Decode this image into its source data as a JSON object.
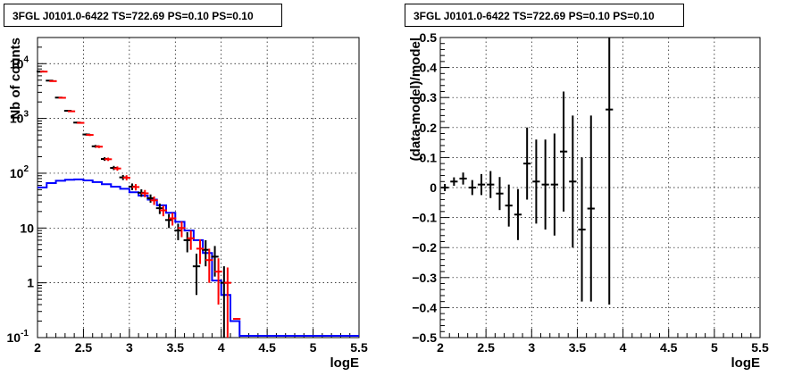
{
  "chart_data": [
    {
      "type": "line",
      "title": "3FGL J0101.0-6422 TS=722.69 PS=0.10 PS=0.10",
      "xlabel": "logE",
      "ylabel": "Nb of counts",
      "xlim": [
        2,
        5.5
      ],
      "ylim": [
        0.1,
        30000
      ],
      "yscale": "log",
      "grid": true,
      "x_ticks": [
        "2",
        "2.5",
        "3",
        "3.5",
        "4",
        "4.5",
        "5",
        "5.5"
      ],
      "y_ticks": [
        "10^-1",
        "1",
        "10",
        "10^2",
        "10^3",
        "10^4"
      ],
      "bin_width": 0.1,
      "series": [
        {
          "role": "data",
          "color": "#000000",
          "points": [
            {
              "x": 2.05,
              "y": 7200,
              "err": 85
            },
            {
              "x": 2.15,
              "y": 4900,
              "err": 70
            },
            {
              "x": 2.25,
              "y": 2400,
              "err": 49
            },
            {
              "x": 2.35,
              "y": 1380,
              "err": 37
            },
            {
              "x": 2.45,
              "y": 840,
              "err": 29
            },
            {
              "x": 2.55,
              "y": 510,
              "err": 23
            },
            {
              "x": 2.65,
              "y": 310,
              "err": 18
            },
            {
              "x": 2.75,
              "y": 182,
              "err": 14
            },
            {
              "x": 2.85,
              "y": 125,
              "err": 11
            },
            {
              "x": 2.95,
              "y": 84,
              "err": 9
            },
            {
              "x": 3.05,
              "y": 57,
              "err": 8
            },
            {
              "x": 3.15,
              "y": 44,
              "err": 7
            },
            {
              "x": 3.25,
              "y": 35,
              "err": 6
            },
            {
              "x": 3.35,
              "y": 23,
              "err": 5
            },
            {
              "x": 3.45,
              "y": 14,
              "err": 4
            },
            {
              "x": 3.55,
              "y": 9,
              "err": 3
            },
            {
              "x": 3.65,
              "y": 6,
              "err": 2.4
            },
            {
              "x": 3.75,
              "y": 2,
              "err": 1.4
            },
            {
              "x": 3.85,
              "y": 4,
              "err": 2
            },
            {
              "x": 3.95,
              "y": 3,
              "err": 1.7
            },
            {
              "x": 4.05,
              "y": 1,
              "err": 1
            }
          ]
        },
        {
          "role": "model total",
          "color": "#ff0000",
          "points": [
            {
              "x": 2.05,
              "y": 7150,
              "err": 84
            },
            {
              "x": 2.15,
              "y": 4800,
              "err": 69
            },
            {
              "x": 2.25,
              "y": 2380,
              "err": 48
            },
            {
              "x": 2.35,
              "y": 1350,
              "err": 36
            },
            {
              "x": 2.45,
              "y": 830,
              "err": 28
            },
            {
              "x": 2.55,
              "y": 500,
              "err": 22
            },
            {
              "x": 2.65,
              "y": 305,
              "err": 17
            },
            {
              "x": 2.75,
              "y": 180,
              "err": 13
            },
            {
              "x": 2.85,
              "y": 122,
              "err": 11
            },
            {
              "x": 2.95,
              "y": 83,
              "err": 9
            },
            {
              "x": 3.05,
              "y": 56,
              "err": 7.5
            },
            {
              "x": 3.15,
              "y": 43,
              "err": 6.5
            },
            {
              "x": 3.25,
              "y": 32,
              "err": 5.6
            },
            {
              "x": 3.35,
              "y": 21,
              "err": 4.6
            },
            {
              "x": 3.45,
              "y": 15,
              "err": 3.9
            },
            {
              "x": 3.55,
              "y": 10,
              "err": 3.2
            },
            {
              "x": 3.65,
              "y": 6.5,
              "err": 2.5
            },
            {
              "x": 3.75,
              "y": 4.2,
              "err": 2
            },
            {
              "x": 3.85,
              "y": 2.6,
              "err": 1.6
            },
            {
              "x": 3.95,
              "y": 1.6,
              "err": 1.2
            },
            {
              "x": 4.05,
              "y": 1,
              "err": 0.9
            },
            {
              "x": 4.15,
              "y": 0.22,
              "err": 0
            }
          ]
        },
        {
          "role": "source model",
          "color": "#0000ff",
          "bins": [
            {
              "x0": 2.0,
              "y": 55
            },
            {
              "x0": 2.1,
              "y": 66
            },
            {
              "x0": 2.2,
              "y": 73
            },
            {
              "x0": 2.3,
              "y": 76
            },
            {
              "x0": 2.4,
              "y": 77
            },
            {
              "x0": 2.5,
              "y": 74
            },
            {
              "x0": 2.6,
              "y": 69
            },
            {
              "x0": 2.7,
              "y": 63
            },
            {
              "x0": 2.8,
              "y": 57
            },
            {
              "x0": 2.9,
              "y": 52
            },
            {
              "x0": 3.0,
              "y": 45
            },
            {
              "x0": 3.1,
              "y": 39
            },
            {
              "x0": 3.2,
              "y": 33
            },
            {
              "x0": 3.3,
              "y": 26
            },
            {
              "x0": 3.4,
              "y": 19
            },
            {
              "x0": 3.5,
              "y": 13
            },
            {
              "x0": 3.6,
              "y": 9
            },
            {
              "x0": 3.7,
              "y": 6
            },
            {
              "x0": 3.8,
              "y": 3.5
            },
            {
              "x0": 3.9,
              "y": 1.1
            },
            {
              "x0": 4.0,
              "y": 0.6
            },
            {
              "x0": 4.1,
              "y": 0.2
            },
            {
              "x0": 4.2,
              "y": 0.1
            },
            {
              "x0": 5.5,
              "y": 0.1
            }
          ]
        }
      ]
    },
    {
      "type": "scatter",
      "title": "3FGL J0101.0-6422 TS=722.69 PS=0.10 PS=0.10",
      "xlabel": "logE",
      "ylabel": "(data-model)/model",
      "xlim": [
        2,
        5.5
      ],
      "ylim": [
        -0.5,
        0.5
      ],
      "grid": true,
      "x_ticks": [
        "2",
        "2.5",
        "3",
        "3.5",
        "4",
        "4.5",
        "5",
        "5.5"
      ],
      "y_ticks": [
        "−0.5",
        "−0.4",
        "−0.3",
        "−0.2",
        "−0.1",
        "0",
        "0.1",
        "0.2",
        "0.3",
        "0.4",
        "0.5"
      ],
      "bin_width": 0.1,
      "series": [
        {
          "color": "#000000",
          "points": [
            {
              "x": 2.05,
              "y": 0.0,
              "err": 0.012
            },
            {
              "x": 2.15,
              "y": 0.02,
              "err": 0.014
            },
            {
              "x": 2.25,
              "y": 0.03,
              "err": 0.02
            },
            {
              "x": 2.35,
              "y": 0.0,
              "err": 0.025
            },
            {
              "x": 2.45,
              "y": 0.01,
              "err": 0.035
            },
            {
              "x": 2.55,
              "y": 0.01,
              "err": 0.045
            },
            {
              "x": 2.65,
              "y": -0.02,
              "err": 0.055
            },
            {
              "x": 2.75,
              "y": -0.06,
              "err": 0.07
            },
            {
              "x": 2.85,
              "y": -0.09,
              "err": 0.085
            },
            {
              "x": 2.95,
              "y": 0.08,
              "err": 0.12
            },
            {
              "x": 3.05,
              "y": 0.02,
              "err": 0.14
            },
            {
              "x": 3.15,
              "y": 0.01,
              "err": 0.15
            },
            {
              "x": 3.25,
              "y": 0.01,
              "err": 0.17
            },
            {
              "x": 3.35,
              "y": 0.12,
              "err": 0.2
            },
            {
              "x": 3.45,
              "y": 0.02,
              "err": 0.22
            },
            {
              "x": 3.55,
              "y": -0.14,
              "err": 0.24
            },
            {
              "x": 3.65,
              "y": -0.07,
              "err": 0.31
            },
            {
              "x": 3.85,
              "y": 0.26,
              "err": 0.65
            }
          ]
        }
      ]
    }
  ]
}
